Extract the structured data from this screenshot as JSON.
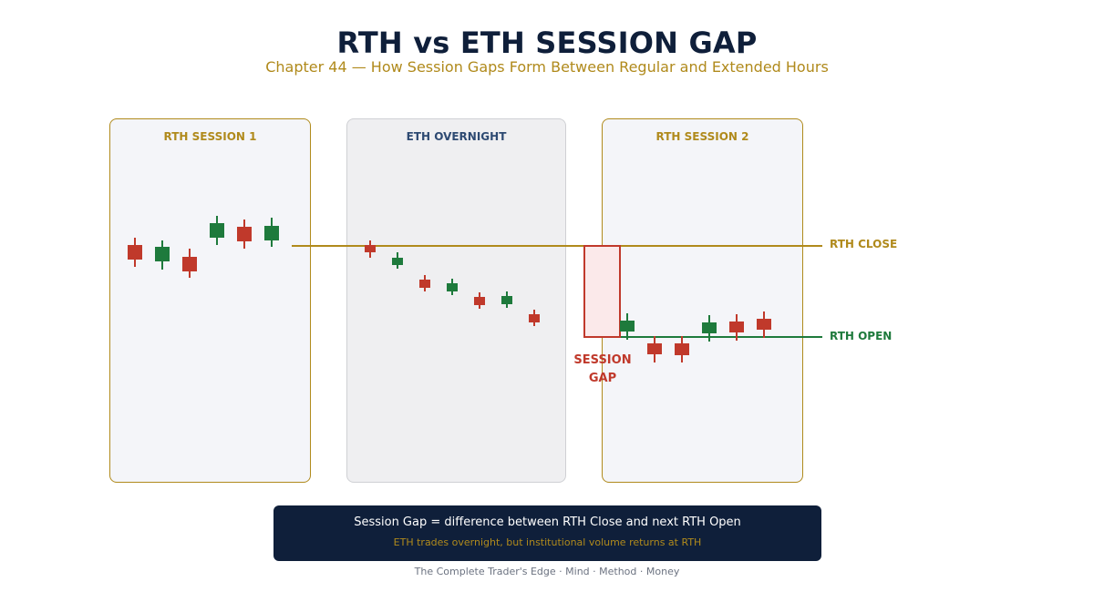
{
  "header": {
    "title": "RTH vs ETH SESSION GAP",
    "subtitle": "Chapter 44 — How Session Gaps Form Between Regular and Extended Hours"
  },
  "panels": {
    "rth1": "RTH SESSION 1",
    "eth": "ETH OVERNIGHT",
    "rth2": "RTH SESSION 2"
  },
  "levels": {
    "rth_close": "RTH CLOSE",
    "rth_open": "RTH OPEN"
  },
  "gap_label": [
    "SESSION",
    "GAP"
  ],
  "info_box": {
    "main": "Session Gap = difference between RTH Close and next RTH Open",
    "sub": "ETH trades overnight, but institutional volume returns at RTH"
  },
  "footer": "The Complete Trader's Edge  ·  Mind · Method · Money",
  "colors": {
    "navy": "#0f1f3a",
    "gold": "#b08a1c",
    "bull": "#1e7a3c",
    "bear": "#c0392b",
    "gap_fill": "#fbe9ea"
  }
}
